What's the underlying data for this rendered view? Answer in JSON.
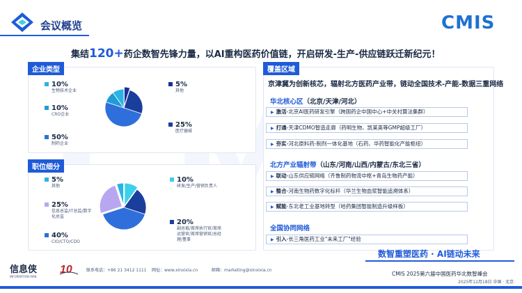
{
  "header": {
    "title": "会议概览"
  },
  "logo": {
    "text": "CMIS"
  },
  "tagline": {
    "pre": "集结",
    "highlight": "120+",
    "post": "药企数智先锋力量，以AI重构医药价值链，开启研发-生产-供应链跃迁新纪元！"
  },
  "enterprise": {
    "tab": "企业类型",
    "slices": [
      {
        "pct": "10%",
        "label": "生物技术企业",
        "color": "#2bb3e6",
        "value": 10
      },
      {
        "pct": "10%",
        "label": "CRO企业",
        "color": "#1f9bd6",
        "value": 10
      },
      {
        "pct": "50%",
        "label": "制药企业",
        "color": "#2f6fdb",
        "value": 50
      },
      {
        "pct": "5%",
        "label": "其他",
        "color": "#1a2f9a",
        "value": 5
      },
      {
        "pct": "25%",
        "label": "医疗器械",
        "color": "#1a3e9c",
        "value": 25
      }
    ]
  },
  "positions": {
    "tab": "职位细分",
    "slices": [
      {
        "pct": "5%",
        "label": "其他",
        "color": "#2bb3e6",
        "value": 5
      },
      {
        "pct": "25%",
        "label": "信息总监/IT总监/数字化总监",
        "color": "#b9a6f0",
        "value": 25
      },
      {
        "pct": "40%",
        "label": "CIO/CTO/CDO",
        "color": "#2f6fdb",
        "value": 40
      },
      {
        "pct": "10%",
        "label": "研发/生产/营销负责人",
        "color": "#3cd0ea",
        "value": 10
      },
      {
        "pct": "20%",
        "label": "副总裁/首席执行官/首席运营官/首席营销官/总经理/董事",
        "color": "#1a3e9c",
        "value": 20
      }
    ]
  },
  "coverage": {
    "tab": "覆盖区域",
    "intro": "京津冀为创新核芯，辐射北方医药产业带，链动全国技术-产能-数据三重网络",
    "core": {
      "head": "华北核心区",
      "sub": "（北京/天津/河北）",
      "items": [
        {
          "kw": "激活",
          "text": "-北京AI医药研发引擎（跨国药企中国中心+中关村算法集群）"
        },
        {
          "kw": "打通",
          "text": "-天津CDMO智造走廊（药明生物、凯莱英等GMP超级工厂）"
        },
        {
          "kw": "夯实",
          "text": "-河北原料药-制剂一体化基地（石药、华药智能化产能枢纽）"
        }
      ]
    },
    "belt": {
      "head": "北方产业辐射带",
      "sub": "（山东/河南/山西/内蒙古/东北三省）",
      "items": [
        {
          "kw": "联动",
          "text": "-山东供应链网络（齐鲁制药物流中枢+青岛生物药产能）"
        },
        {
          "kw": "整合",
          "text": "-河南生物药数字化标杆（华兰生物血浆智能追溯体系）"
        },
        {
          "kw": "赋能",
          "text": "-东北老工业基地转型（哈药集团智能制造升级样板）"
        }
      ]
    },
    "national": {
      "head": "全国协同网络",
      "items": [
        {
          "kw": "引入",
          "text": "-长三角医药工业\"未来工厂\"经验"
        }
      ]
    }
  },
  "footer": {
    "brand": "信息侠",
    "brand_sub": "INFORMATION MAN",
    "phone": "联系电话：+86 21 3412 1111",
    "website": "网址：www.xinxixia.cn",
    "email": "邮箱：marketing@xinxixia.cn",
    "slogan": "数智重塑医药 · AI链动未来",
    "event": "CMIS 2025第六届中国医药华北数智峰会",
    "date": "2025年12月18日  中国 · 北京"
  }
}
